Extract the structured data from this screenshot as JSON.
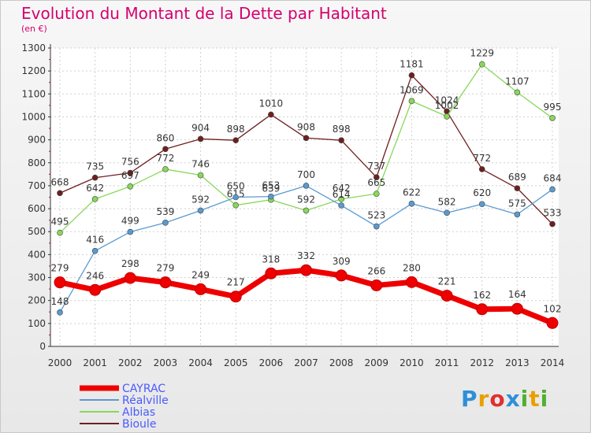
{
  "header": {
    "title": "Evolution du Montant de la Dette par Habitant",
    "unit": "(en €)"
  },
  "logo": {
    "text": "Proxiti",
    "letter_colors": [
      "#2f8fd8",
      "#e8a000",
      "#e03030",
      "#2f8fd8",
      "#50b030",
      "#e8a000",
      "#50b030"
    ]
  },
  "chart_data": {
    "type": "line",
    "x": [
      2000,
      2001,
      2002,
      2003,
      2004,
      2005,
      2006,
      2007,
      2008,
      2009,
      2010,
      2011,
      2012,
      2013,
      2014
    ],
    "ylim": [
      0,
      1300
    ],
    "yticks": [
      0,
      100,
      200,
      300,
      400,
      500,
      600,
      700,
      800,
      900,
      1000,
      1100,
      1200,
      1300
    ],
    "grid": true,
    "legend_position": "bottom-left",
    "series": [
      {
        "name": "Bioule",
        "color": "#6e1f1f",
        "values": [
          668,
          735,
          756,
          860,
          904,
          898,
          1010,
          908,
          898,
          737,
          1181,
          1024,
          772,
          689,
          533
        ]
      },
      {
        "name": "Albias",
        "color": "#88d85a",
        "values": [
          495,
          642,
          697,
          772,
          746,
          615,
          639,
          592,
          642,
          665,
          1069,
          1002,
          1229,
          1107,
          995
        ]
      },
      {
        "name": "Réalville",
        "color": "#5a9ad0",
        "values": [
          148,
          416,
          499,
          539,
          592,
          650,
          653,
          700,
          614,
          523,
          622,
          582,
          620,
          575,
          684
        ]
      },
      {
        "name": "CAYRAC",
        "color": "#ee0000",
        "values": [
          279,
          246,
          298,
          279,
          249,
          217,
          318,
          332,
          309,
          266,
          280,
          221,
          162,
          164,
          102
        ]
      }
    ],
    "legend_order": [
      "CAYRAC",
      "Réalville",
      "Albias",
      "Bioule"
    ]
  }
}
